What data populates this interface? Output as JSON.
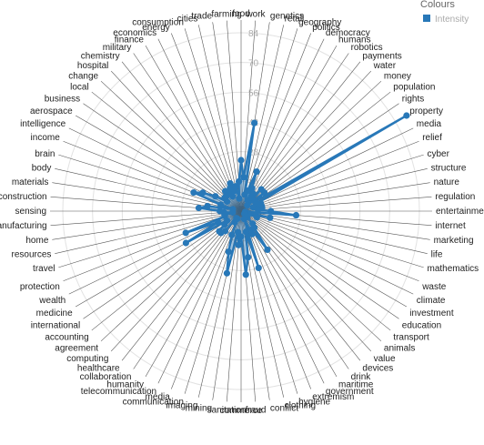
{
  "chart_data": {
    "type": "radar",
    "categories": [
      "food",
      "work",
      "genetics",
      "retail",
      "geography",
      "politics",
      "democracy",
      "humans",
      "robotics",
      "payments",
      "water",
      "money",
      "population",
      "rights",
      "property",
      "media",
      "relief",
      "cyber",
      "structure",
      "nature",
      "regulation",
      "entertainment",
      "internet",
      "marketing",
      "life",
      "mathematics",
      "waste",
      "climate",
      "investment",
      "education",
      "transport",
      "animals",
      "value",
      "devices",
      "drink",
      "maritime",
      "government",
      "extremism",
      "hygiene",
      "clothing",
      "conflict",
      "fraud",
      "commerce",
      "sanitation",
      "mining",
      "imaging",
      "communication",
      "media",
      "telecommunication",
      "humanity",
      "collaboration",
      "healthcare",
      "computing",
      "agreement",
      "accounting",
      "international",
      "medicine",
      "wealth",
      "protection",
      "travel",
      "resources",
      "home",
      "manufacturing",
      "sensing",
      "construction",
      "materials",
      "body",
      "brain",
      "income",
      "intelligence",
      "aerospace",
      "business",
      "local",
      "change",
      "hospital",
      "chemistry",
      "military",
      "finance",
      "economics",
      "energy",
      "consumption",
      "cities",
      "trade",
      "farming"
    ],
    "series": [
      {
        "name": "Intensity",
        "color": "#2878b8",
        "values": [
          24,
          16,
          42,
          8,
          10,
          20,
          12,
          6,
          10,
          8,
          14,
          4,
          14,
          8,
          90,
          8,
          10,
          6,
          10,
          10,
          8,
          14,
          26,
          2,
          14,
          4,
          8,
          2,
          2,
          2,
          2,
          4,
          8,
          10,
          22,
          10,
          12,
          4,
          28,
          10,
          22,
          30,
          12,
          16,
          10,
          30,
          20,
          12,
          4,
          6,
          4,
          12,
          14,
          14,
          10,
          8,
          30,
          12,
          28,
          8,
          8,
          4,
          8,
          10,
          20,
          16,
          4,
          10,
          24,
          20,
          14,
          8,
          10,
          10,
          10,
          12,
          10,
          8,
          12,
          14,
          10,
          12,
          6,
          14
        ]
      }
    ],
    "ticks": [
      "14",
      "28",
      "42",
      "56",
      "70",
      "84"
    ],
    "rlim": [
      0,
      90
    ],
    "legend": {
      "title": "Colours",
      "position": "top-right",
      "entries": [
        "Intensity"
      ]
    }
  }
}
